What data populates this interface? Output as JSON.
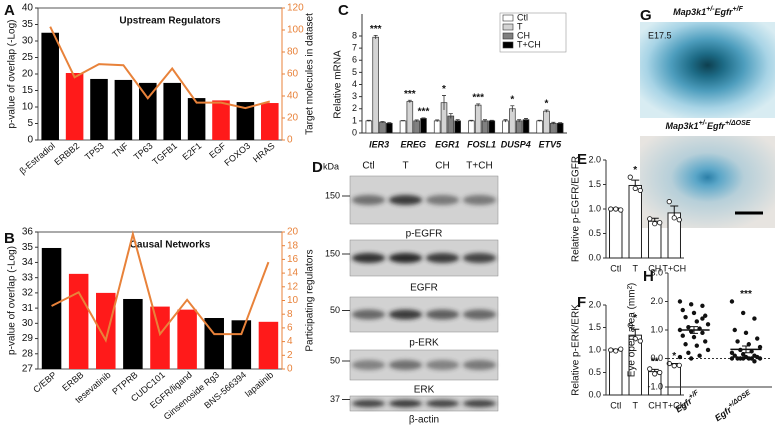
{
  "panel_labels": [
    "A",
    "B",
    "C",
    "D",
    "E",
    "F",
    "G",
    "H"
  ],
  "chart_data": [
    {
      "type": "combo",
      "title": "Upstream Regulators",
      "ylabel": "p-value of overlap (-Log)",
      "y2label": "Target molecules in dataset",
      "categories": [
        "β-Estradiol",
        "ERBB2",
        "TP53",
        "TNF",
        "TP63",
        "TGFB1",
        "E2F1",
        "EGF",
        "FOXO3",
        "HRAS"
      ],
      "series": [
        {
          "values": [
            32.5,
            20.3,
            18.5,
            18.2,
            17.3,
            17.3,
            12.7,
            12.0,
            11.5,
            11.2
          ],
          "colors": [
            "#000000",
            "#ff1a1a",
            "#000000",
            "#000000",
            "#000000",
            "#000000",
            "#000000",
            "#ff1a1a",
            "#000000",
            "#ff1a1a"
          ]
        },
        {
          "values": [
            103,
            57,
            69,
            68,
            38,
            65,
            34,
            34,
            29,
            35
          ],
          "color": "#e8823a",
          "axis": "y2"
        }
      ],
      "ylim": [
        0,
        40
      ],
      "yticks": [
        0,
        5,
        10,
        15,
        20,
        25,
        30,
        35,
        40
      ],
      "y2lim": [
        0,
        120
      ],
      "y2ticks": [
        0,
        20,
        40,
        60,
        80,
        100,
        120
      ]
    },
    {
      "type": "combo",
      "title": "Causal Networks",
      "ylabel": "p-value of overlap (-Log)",
      "y2label": "Participating regulators",
      "categories": [
        "C/EBP",
        "ERBB",
        "tesevatinib",
        "PTPRB",
        "CUDC101",
        "EGFR/ligand",
        "Ginsenoside Rg3",
        "BNS-566394",
        "lapatinib"
      ],
      "series": [
        {
          "values": [
            34.95,
            33.25,
            32.0,
            31.6,
            31.1,
            30.9,
            30.35,
            30.2,
            30.1
          ],
          "colors": [
            "#000000",
            "#ff1a1a",
            "#ff1a1a",
            "#000000",
            "#ff1a1a",
            "#ff1a1a",
            "#000000",
            "#000000",
            "#ff1a1a"
          ]
        },
        {
          "values": [
            9.2,
            11.2,
            4.2,
            19.7,
            5.1,
            10.1,
            5.1,
            5.1,
            15.6
          ],
          "color": "#e8823a",
          "axis": "y2"
        }
      ],
      "ylim": [
        27,
        36
      ],
      "yticks": [
        27,
        28,
        29,
        30,
        31,
        32,
        33,
        34,
        35,
        36
      ],
      "y2lim": [
        0,
        20
      ],
      "y2ticks": [
        0,
        2,
        4,
        6,
        8,
        10,
        12,
        14,
        16,
        18,
        20
      ]
    },
    {
      "type": "bar",
      "ylabel": "Relative mRNA",
      "categories": [
        "IER3",
        "EREG",
        "EGR1",
        "FOSL1",
        "DUSP4",
        "ETV5"
      ],
      "series": [
        {
          "name": "Ctl",
          "color": "#ffffff",
          "values": [
            1,
            1,
            1,
            1,
            1,
            1
          ],
          "errors": [
            0.05,
            0.03,
            0.08,
            0.05,
            0.1,
            0.05
          ]
        },
        {
          "name": "T",
          "color": "#d4d4d4",
          "values": [
            7.9,
            2.6,
            2.5,
            2.3,
            2.0,
            1.8
          ],
          "errors": [
            0.15,
            0.1,
            0.6,
            0.1,
            0.25,
            0.1
          ],
          "significance": [
            "***",
            "***",
            "*",
            "***",
            "*",
            "*"
          ]
        },
        {
          "name": "CH",
          "color": "#808080",
          "values": [
            0.9,
            1.0,
            1.4,
            1.0,
            1.0,
            0.8
          ],
          "errors": [
            0.05,
            0.08,
            0.2,
            0.1,
            0.1,
            0.08
          ]
        },
        {
          "name": "T+CH",
          "color": "#000000",
          "values": [
            0.8,
            1.2,
            1.0,
            1.0,
            1.1,
            0.8
          ],
          "errors": [
            0.05,
            0.05,
            0.1,
            0.05,
            0.1,
            0.05
          ],
          "significance": [
            null,
            "***",
            null,
            null,
            null,
            null
          ]
        }
      ],
      "ylim": [
        0,
        8
      ],
      "yticks": [
        0,
        1,
        2,
        3,
        4,
        5,
        6,
        7,
        8
      ],
      "legend": "upper right"
    },
    {
      "type": "dotbar",
      "ylabel": "Relative p-EGFR/EGFR",
      "categories": [
        "Ctl",
        "T",
        "CH",
        "T+CH"
      ],
      "values": [
        1.0,
        1.48,
        0.75,
        0.92
      ],
      "errors": [
        0.02,
        0.11,
        0.06,
        0.14
      ],
      "points": [
        [
          1.0,
          1.0,
          0.98
        ],
        [
          1.65,
          1.42,
          1.38
        ],
        [
          0.8,
          0.7,
          0.72
        ],
        [
          1.15,
          0.82,
          0.78
        ]
      ],
      "significance": [
        null,
        "*",
        null,
        null
      ],
      "color": "#ffffff",
      "ylim": [
        0,
        2
      ],
      "yticks": [
        {
          "value": 0,
          "label": "0.0"
        },
        0.5,
        {
          "value": 1,
          "label": "1.0"
        },
        1.5,
        {
          "value": 2,
          "label": "2.0"
        }
      ]
    },
    {
      "type": "dotbar",
      "ylabel": "Relative p-ERK/ERK",
      "categories": [
        "Ctl",
        "T",
        "CH",
        "T+CH"
      ],
      "values": [
        1.0,
        1.33,
        0.52,
        0.67
      ],
      "errors": [
        0.02,
        0.13,
        0.05,
        0.03
      ],
      "points": [
        [
          1.0,
          0.98,
          1.02
        ],
        [
          1.55,
          1.25,
          1.2
        ],
        [
          0.58,
          0.47,
          0.5
        ],
        [
          0.7,
          0.65,
          0.66
        ]
      ],
      "significance": [
        null,
        "*",
        "**",
        "*"
      ],
      "color": "#ffffff",
      "ylim": [
        0,
        2
      ],
      "yticks": [
        {
          "value": 0,
          "label": "0.0"
        },
        0.5,
        {
          "value": 1,
          "label": "1.0"
        },
        1.5,
        {
          "value": 2,
          "label": "2.0"
        }
      ]
    },
    {
      "type": "dotplot",
      "ylabel": "Eye open area (mm²)",
      "categories": [
        [
          "Egfr",
          "+/F"
        ],
        [
          "Egfr",
          "+/ΔOSE"
        ]
      ],
      "values": [
        1.0,
        0.32
      ],
      "errors": [
        0.12,
        0.12
      ],
      "points": [
        [
          2.0,
          1.9,
          1.85,
          1.7,
          1.6,
          1.5,
          1.45,
          1.3,
          1.2,
          1.1,
          1.05,
          1.0,
          0.95,
          0.9,
          0.8,
          0.75,
          0.6,
          0.5,
          0.45,
          0.3,
          0.2,
          0.1,
          0.05,
          0.0,
          1.4
        ],
        [
          2.0,
          1.6,
          1.4,
          1.0,
          0.9,
          0.7,
          0.6,
          0.5,
          0.4,
          0.3,
          0.25,
          0.2,
          0.15,
          0.1,
          0.1,
          0.05,
          0.05,
          0,
          0,
          0,
          0,
          0,
          0,
          0,
          -0.1
        ]
      ],
      "significance": [
        null,
        "***"
      ],
      "zero_line": true,
      "ylim": [
        -1,
        3
      ],
      "yticks": [
        {
          "value": -1,
          "label": "-1.0"
        },
        {
          "value": 0,
          "label": "0.0"
        },
        {
          "value": 1,
          "label": "1.0"
        },
        {
          "value": 2,
          "label": "2.0"
        },
        {
          "value": 3,
          "label": "3.0"
        }
      ]
    }
  ],
  "blot": {
    "unit": "kDa",
    "lanes": [
      "Ctl",
      "T",
      "CH",
      "T+CH"
    ],
    "rows": [
      {
        "name": "p-EGFR",
        "marker": 150
      },
      {
        "name": "EGFR",
        "marker": 150
      },
      {
        "name": "p-ERK",
        "marker": 50
      },
      {
        "name": "ERK",
        "marker": 50
      },
      {
        "name": "β-actin",
        "marker": 37
      }
    ]
  },
  "photos": [
    {
      "title": [
        "Map3k1",
        "+/-",
        "Egfr",
        "+/F"
      ],
      "stage": "E17.5"
    },
    {
      "title": [
        "Map3k1",
        "+/-",
        "Egfr",
        "+/ΔOSE"
      ]
    }
  ]
}
